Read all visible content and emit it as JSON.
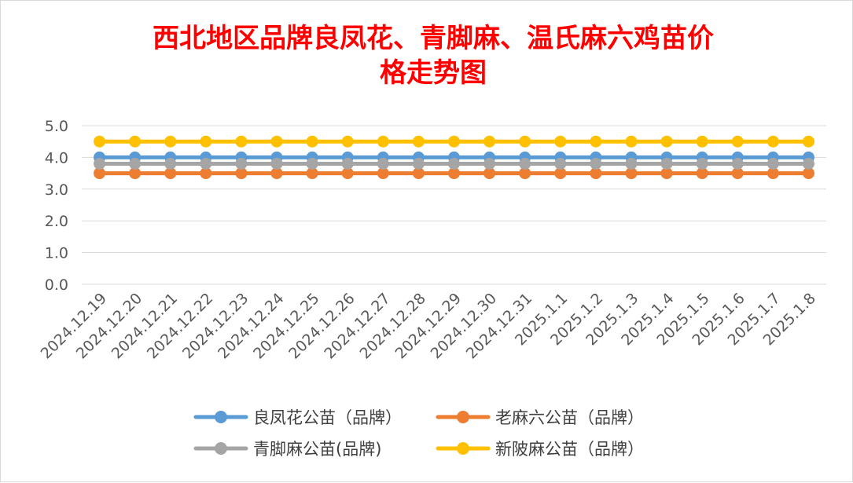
{
  "title_line1": "西北地区品牌良凤花、青脚麻、温氏麻六鸡苗价",
  "title_line2": "格走势图",
  "chart_data": {
    "type": "line",
    "title": "西北地区品牌良凤花、青脚麻、温氏麻六鸡苗价格走势图",
    "xlabel": "",
    "ylabel": "",
    "ylim": [
      0,
      5
    ],
    "yticks": [
      "0.0",
      "1.0",
      "2.0",
      "3.0",
      "4.0",
      "5.0"
    ],
    "grid": "horizontal",
    "legend_position": "bottom",
    "categories": [
      "2024.12.19",
      "2024.12.20",
      "2024.12.21",
      "2024.12.22",
      "2024.12.23",
      "2024.12.24",
      "2024.12.25",
      "2024.12.26",
      "2024.12.27",
      "2024.12.28",
      "2024.12.29",
      "2024.12.30",
      "2024.12.31",
      "2025.1.1",
      "2025.1.2",
      "2025.1.3",
      "2025.1.4",
      "2025.1.5",
      "2025.1.6",
      "2025.1.7",
      "2025.1.8"
    ],
    "series": [
      {
        "name": "良凤花公苗（品牌）",
        "color": "#5b9bd5",
        "values": [
          4.0,
          4.0,
          4.0,
          4.0,
          4.0,
          4.0,
          4.0,
          4.0,
          4.0,
          4.0,
          4.0,
          4.0,
          4.0,
          4.0,
          4.0,
          4.0,
          4.0,
          4.0,
          4.0,
          4.0,
          4.0
        ]
      },
      {
        "name": "老麻六公苗（品牌）",
        "color": "#ed7d31",
        "values": [
          3.5,
          3.5,
          3.5,
          3.5,
          3.5,
          3.5,
          3.5,
          3.5,
          3.5,
          3.5,
          3.5,
          3.5,
          3.5,
          3.5,
          3.5,
          3.5,
          3.5,
          3.5,
          3.5,
          3.5,
          3.5
        ]
      },
      {
        "name": "青脚麻公苗(品牌)",
        "color": "#a5a5a5",
        "values": [
          3.8,
          3.8,
          3.8,
          3.8,
          3.8,
          3.8,
          3.8,
          3.8,
          3.8,
          3.8,
          3.8,
          3.8,
          3.8,
          3.8,
          3.8,
          3.8,
          3.8,
          3.8,
          3.8,
          3.8,
          3.8
        ]
      },
      {
        "name": "新陂麻公苗（品牌）",
        "color": "#ffc000",
        "values": [
          4.5,
          4.5,
          4.5,
          4.5,
          4.5,
          4.5,
          4.5,
          4.5,
          4.5,
          4.5,
          4.5,
          4.5,
          4.5,
          4.5,
          4.5,
          4.5,
          4.5,
          4.5,
          4.5,
          4.5,
          4.5
        ]
      }
    ]
  }
}
